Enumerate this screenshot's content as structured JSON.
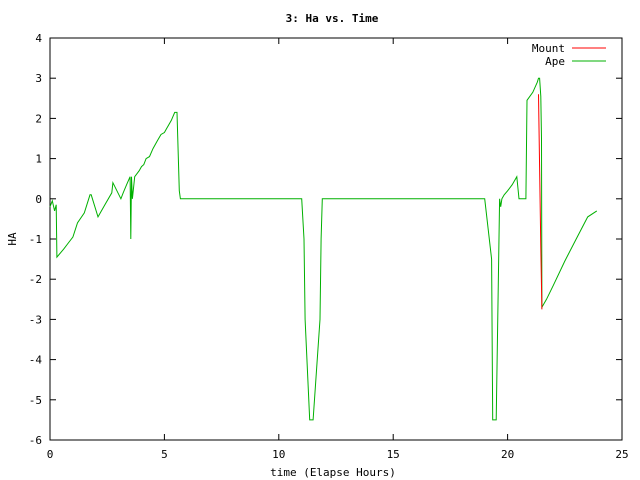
{
  "chart_data": {
    "type": "line",
    "title": "3: Ha vs. Time",
    "xlabel": "time (Elapse Hours)",
    "ylabel": "HA",
    "xlim": [
      0,
      25
    ],
    "ylim": [
      -6,
      4
    ],
    "x_ticks": [
      "0",
      "5",
      "10",
      "15",
      "20",
      "25"
    ],
    "y_ticks": [
      "4",
      "3",
      "2",
      "1",
      "0",
      "-1",
      "-2",
      "-3",
      "-4",
      "-5",
      "-6"
    ],
    "grid": false,
    "legend_position": "top-right",
    "series": [
      {
        "name": "Mount",
        "color": "#ff0000",
        "x": [
          21.35,
          21.45,
          21.5
        ],
        "y": [
          2.6,
          -1.2,
          -2.75
        ]
      },
      {
        "name": "Ape",
        "color": "#00b000",
        "x": [
          0,
          0.1,
          0.2,
          0.27,
          0.3,
          0.6,
          0.8,
          1.0,
          1.2,
          1.5,
          1.75,
          1.8,
          2.1,
          2.4,
          2.7,
          2.75,
          3.1,
          3.2,
          3.35,
          3.5,
          3.53,
          3.56,
          3.6,
          3.7,
          3.9,
          4.0,
          4.1,
          4.2,
          4.35,
          4.5,
          4.7,
          4.85,
          5.0,
          5.1,
          5.3,
          5.45,
          5.55,
          5.65,
          5.7,
          5.8,
          6.5,
          8.0,
          10.0,
          11.0,
          11.1,
          11.15,
          11.35,
          11.5,
          11.8,
          11.85,
          11.9,
          12.1,
          14.0,
          16.0,
          18.0,
          19.0,
          19.3,
          19.35,
          19.5,
          19.65,
          19.7,
          19.75,
          19.85,
          20.0,
          20.2,
          20.4,
          20.5,
          20.6,
          20.8,
          20.85,
          21.1,
          21.3,
          21.35,
          21.4,
          21.45,
          21.48,
          21.5,
          21.7,
          22.0,
          22.5,
          23.0,
          23.5,
          23.9
        ],
        "y": [
          -0.2,
          -0.05,
          -0.3,
          -0.15,
          -1.45,
          -1.25,
          -1.1,
          -0.95,
          -0.6,
          -0.35,
          0.1,
          0.1,
          -0.45,
          -0.15,
          0.15,
          0.4,
          0.0,
          0.15,
          0.35,
          0.55,
          -1.0,
          0.55,
          0.0,
          0.55,
          0.7,
          0.8,
          0.85,
          1.0,
          1.05,
          1.25,
          1.45,
          1.6,
          1.65,
          1.75,
          1.95,
          2.15,
          2.15,
          0.2,
          0.0,
          0.0,
          0.0,
          0.0,
          0.0,
          0.0,
          -1.0,
          -3.0,
          -5.5,
          -5.5,
          -3.0,
          -1.0,
          0.0,
          0.0,
          0.0,
          0.0,
          0.0,
          0.0,
          -1.5,
          -5.5,
          -5.5,
          0.0,
          -0.2,
          0.0,
          0.1,
          0.2,
          0.35,
          0.55,
          0.0,
          0.0,
          0.0,
          2.45,
          2.65,
          2.9,
          3.0,
          3.0,
          2.55,
          1.5,
          -2.7,
          -2.5,
          -2.15,
          -1.55,
          -1.0,
          -0.45,
          -0.3
        ]
      }
    ]
  }
}
